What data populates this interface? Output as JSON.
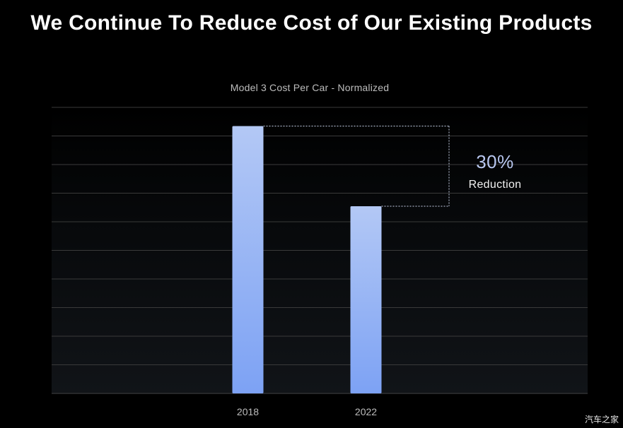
{
  "page": {
    "title": "We Continue To Reduce Cost of Our Existing Products",
    "watermark": "汽车之家"
  },
  "chart_data": {
    "type": "bar",
    "title": "Model 3 Cost Per Car - Normalized",
    "xlabel": "",
    "ylabel": "",
    "categories": [
      "2018",
      "2022"
    ],
    "values": [
      100,
      70
    ],
    "ylim": [
      0,
      107
    ],
    "grid": true,
    "y_tick_labels_shown": false,
    "annotation": {
      "value": "30%",
      "text": "Reduction",
      "from_category": "2018",
      "to_category": "2022"
    },
    "colors": {
      "bar_top": "#b3c8f5",
      "bar_bottom": "#7da2f4",
      "grid": "#3a3a3a",
      "annotation_line": "#c9d3ea",
      "annotation_value": "#b8c7ef"
    }
  }
}
